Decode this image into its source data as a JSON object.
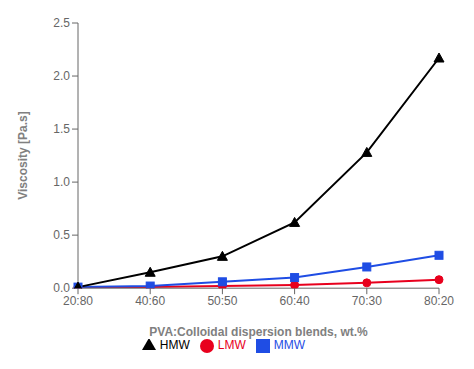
{
  "chart_data": {
    "type": "line",
    "xlabel": "PVA:Colloidal dispersion blends, wt.%",
    "ylabel": "Viscosity [Pa.s]",
    "categories": [
      "20:80",
      "40:60",
      "50:50",
      "60:40",
      "70:30",
      "80:20"
    ],
    "series": [
      {
        "name": "LMW",
        "color": "#e8001d",
        "marker": "circle",
        "values": [
          0.01,
          0.01,
          0.02,
          0.03,
          0.05,
          0.08
        ]
      },
      {
        "name": "MMW",
        "color": "#1f4de4",
        "marker": "square",
        "values": [
          0.01,
          0.02,
          0.06,
          0.1,
          0.2,
          0.31
        ]
      },
      {
        "name": "HMW",
        "color": "#000000",
        "marker": "triangle",
        "values": [
          0.01,
          0.15,
          0.3,
          0.62,
          1.28,
          2.17
        ]
      }
    ],
    "ylim": [
      0,
      2.5
    ],
    "yticks": [
      {
        "value": 0,
        "label": "0.0"
      },
      0.5,
      {
        "value": 1,
        "label": "1.0"
      },
      1.5,
      {
        "value": 2,
        "label": "2.0"
      },
      2.5
    ],
    "grid": false,
    "legend": "bottom"
  }
}
